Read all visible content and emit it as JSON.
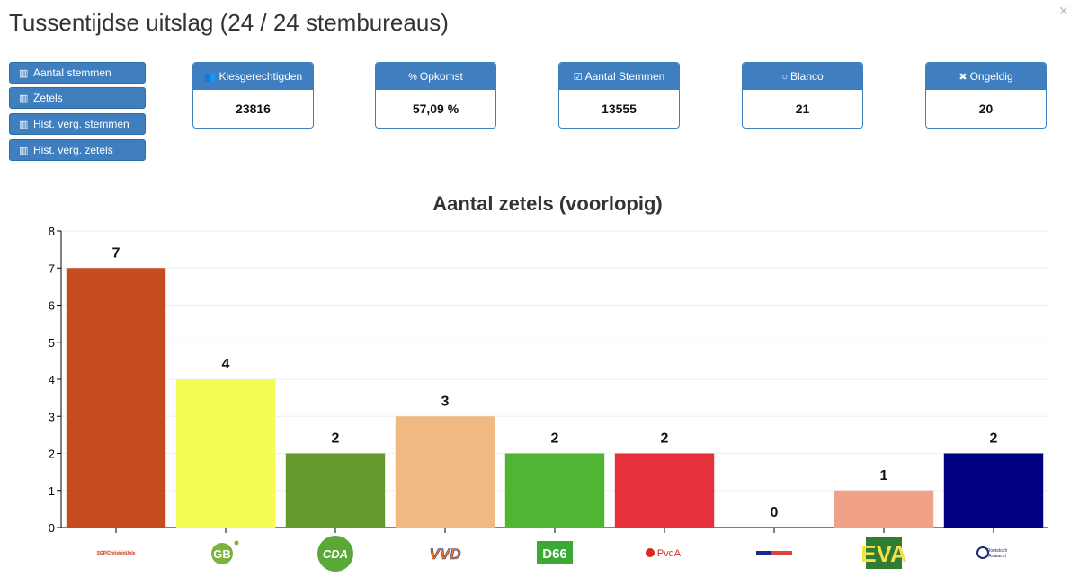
{
  "header": {
    "title": "Tussentijdse uitslag (24 / 24 stembureaus)",
    "close_icon": "×"
  },
  "sidebar": {
    "buttons": [
      {
        "label": "Aantal stemmen",
        "icon": "bar-chart-icon"
      },
      {
        "label": "Zetels",
        "icon": "bar-chart-icon"
      },
      {
        "label": "Hist. verg. stemmen",
        "icon": "bar-chart-icon"
      },
      {
        "label": "Hist. verg. zetels",
        "icon": "bar-chart-icon"
      }
    ]
  },
  "stats": [
    {
      "label": "Kiesgerechtigden",
      "value": "23816",
      "icon": "users-icon",
      "glyph": "👥"
    },
    {
      "label": "Opkomst",
      "value": "57,09 %",
      "icon": "percent-icon",
      "glyph": "%"
    },
    {
      "label": "Aantal Stemmen",
      "value": "13555",
      "icon": "check-square-icon",
      "glyph": "☑"
    },
    {
      "label": "Blanco",
      "value": "21",
      "icon": "circle-icon",
      "glyph": "○"
    },
    {
      "label": "Ongeldig",
      "value": "20",
      "icon": "x-icon",
      "glyph": "✖"
    }
  ],
  "chart_data": {
    "type": "bar",
    "title": "Aantal zetels (voorlopig)",
    "xlabel": "",
    "ylabel": "",
    "ylim": [
      0,
      8
    ],
    "yticks": [
      0,
      1,
      2,
      3,
      4,
      5,
      6,
      7,
      8
    ],
    "grid": true,
    "categories": [
      "SGP/ChristenUnie",
      "GB",
      "CDA",
      "VVD",
      "D66",
      "PvdA",
      "",
      "EVA",
      "Rootstoch Ambacht"
    ],
    "values": [
      7,
      4,
      2,
      3,
      2,
      2,
      0,
      1,
      2
    ],
    "colors": [
      "#c64b1f",
      "#f6fd52",
      "#64992b",
      "#f0b982",
      "#50b533",
      "#e6303b",
      "#ffffff",
      "#f0a187",
      "#000080"
    ],
    "logo_icons": [
      "sgp-cu-logo",
      "gb-logo",
      "cda-logo",
      "vvd-logo",
      "d66-logo",
      "pvda-logo",
      "party-7-logo",
      "eva-logo",
      "party-9-logo"
    ]
  }
}
